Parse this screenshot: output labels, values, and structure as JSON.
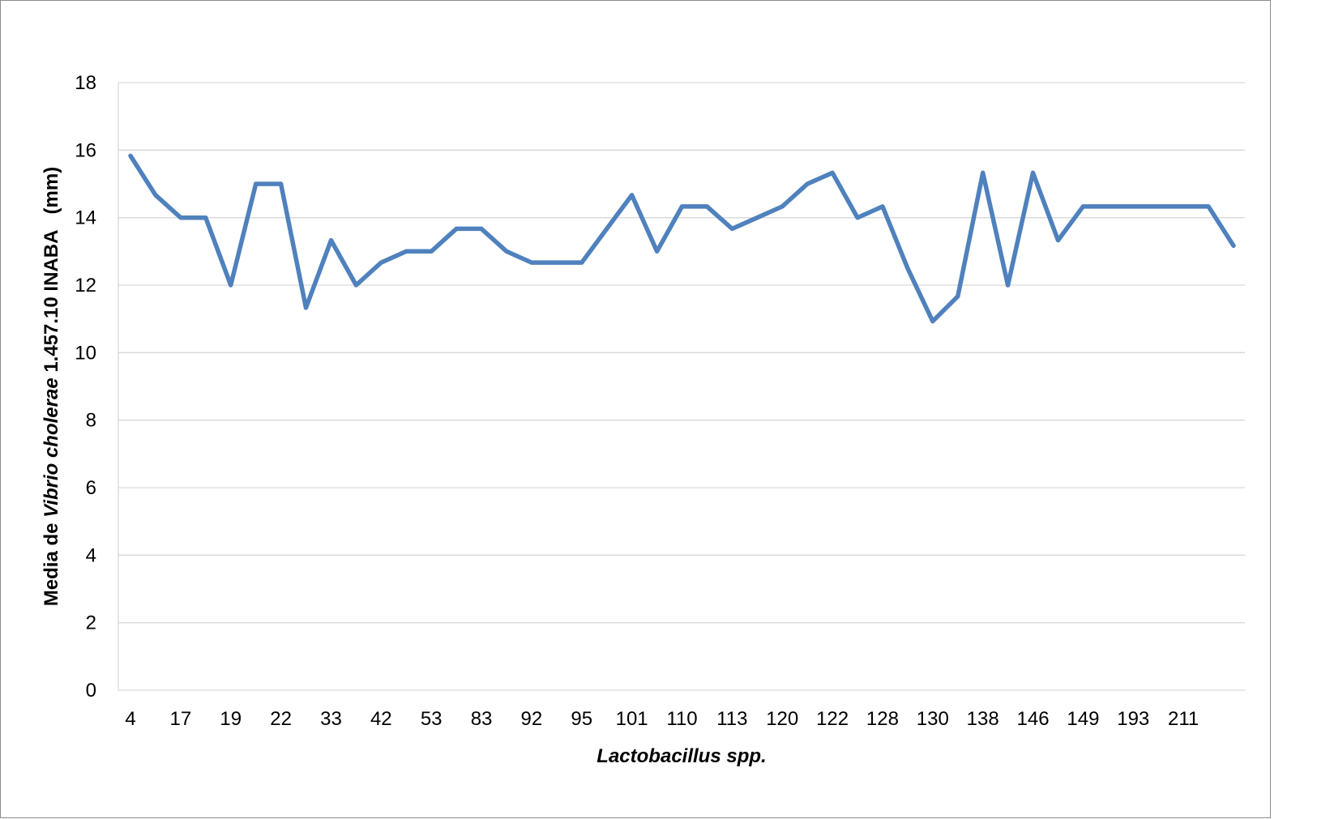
{
  "chart_data": {
    "type": "line",
    "title": "",
    "xlabel": "Lactobacillus spp.",
    "ylabel": {
      "prefix": "Media de ",
      "italic": "Vibrio cholerae",
      "suffix": " 1.457.10 INABA   (mm)"
    },
    "ylim": [
      0,
      18
    ],
    "yticks": [
      0,
      2,
      4,
      6,
      8,
      10,
      12,
      14,
      16,
      18
    ],
    "grid": true,
    "legend": "none",
    "x_tick_labels": [
      "4",
      "17",
      "19",
      "22",
      "33",
      "42",
      "53",
      "83",
      "92",
      "95",
      "101",
      "110",
      "113",
      "120",
      "122",
      "128",
      "130",
      "138",
      "146",
      "149",
      "193",
      "211"
    ],
    "x_tick_every": 2,
    "series": [
      {
        "color": "#4f81bd",
        "values": [
          15.83,
          14.67,
          14.0,
          14.0,
          12.0,
          15.0,
          15.0,
          11.33,
          13.33,
          12.0,
          12.67,
          13.0,
          13.0,
          13.67,
          13.67,
          13.0,
          12.67,
          12.67,
          12.67,
          13.67,
          14.67,
          13.0,
          14.33,
          14.33,
          13.67,
          14.0,
          14.33,
          15.0,
          15.33,
          14.0,
          14.33,
          12.5,
          10.93,
          11.67,
          15.33,
          12.0,
          15.33,
          13.33,
          14.33,
          14.33,
          14.33,
          14.33,
          14.33,
          14.33,
          13.17
        ]
      }
    ]
  }
}
